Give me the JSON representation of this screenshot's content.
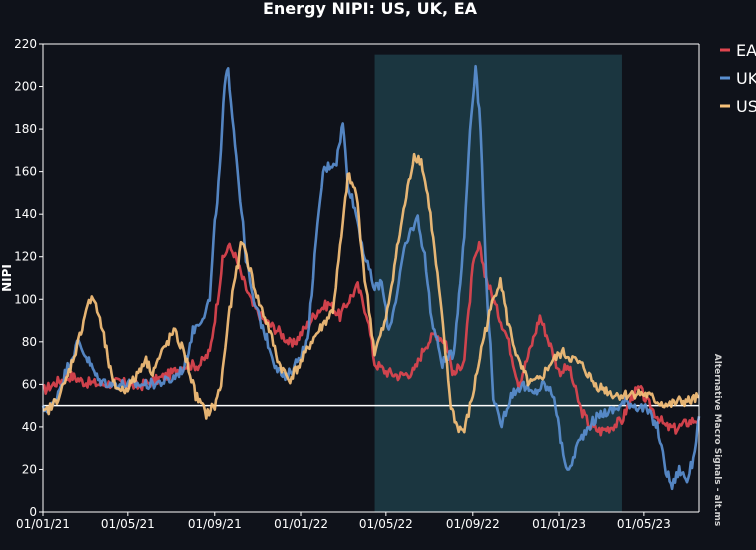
{
  "chart_data": {
    "type": "line",
    "title": "Energy NIPI: US, UK, EA",
    "ylabel": "NIPI",
    "xlabel": "",
    "ylim": [
      0,
      220
    ],
    "xlim": [
      "2021-01-01",
      "2023-07-18"
    ],
    "yticks": [
      0,
      20,
      40,
      60,
      80,
      100,
      120,
      140,
      160,
      180,
      200,
      220
    ],
    "xticks": [
      {
        "date": "2021-01-01",
        "label": "01/01/21"
      },
      {
        "date": "2021-05-01",
        "label": "01/05/21"
      },
      {
        "date": "2021-09-01",
        "label": "01/09/21"
      },
      {
        "date": "2022-01-01",
        "label": "01/01/22"
      },
      {
        "date": "2022-05-01",
        "label": "01/05/22"
      },
      {
        "date": "2022-09-01",
        "label": "01/09/22"
      },
      {
        "date": "2023-01-01",
        "label": "01/01/23"
      },
      {
        "date": "2023-05-01",
        "label": "01/05/23"
      }
    ],
    "reference_line": {
      "y": 50,
      "color": "#ffffff"
    },
    "shaded_region": {
      "x_start": "2022-04-15",
      "x_end": "2023-03-31",
      "ylim": [
        0,
        215
      ],
      "color": "#1b3640"
    },
    "legend_position": "top-right",
    "watermark": "Alternative Macro Signals - alt.ms",
    "series": [
      {
        "name": "EA",
        "color": "#e0454f",
        "points": [
          [
            "2021-01-01",
            57
          ],
          [
            "2021-01-20",
            61
          ],
          [
            "2021-02-10",
            64
          ],
          [
            "2021-03-01",
            61
          ],
          [
            "2021-03-25",
            60
          ],
          [
            "2021-04-20",
            61
          ],
          [
            "2021-05-15",
            59
          ],
          [
            "2021-06-10",
            62
          ],
          [
            "2021-07-01",
            65
          ],
          [
            "2021-07-20",
            69
          ],
          [
            "2021-08-10",
            69
          ],
          [
            "2021-08-25",
            75
          ],
          [
            "2021-09-05",
            100
          ],
          [
            "2021-09-12",
            118
          ],
          [
            "2021-09-20",
            125
          ],
          [
            "2021-09-28",
            122
          ],
          [
            "2021-10-10",
            110
          ],
          [
            "2021-10-25",
            97
          ],
          [
            "2021-11-10",
            90
          ],
          [
            "2021-12-01",
            85
          ],
          [
            "2021-12-20",
            78
          ],
          [
            "2022-01-10",
            88
          ],
          [
            "2022-01-25",
            95
          ],
          [
            "2022-02-10",
            98
          ],
          [
            "2022-02-25",
            92
          ],
          [
            "2022-03-10",
            100
          ],
          [
            "2022-03-22",
            106
          ],
          [
            "2022-04-05",
            92
          ],
          [
            "2022-04-15",
            70
          ],
          [
            "2022-05-01",
            66
          ],
          [
            "2022-05-20",
            64
          ],
          [
            "2022-06-10",
            66
          ],
          [
            "2022-06-25",
            78
          ],
          [
            "2022-07-10",
            84
          ],
          [
            "2022-07-25",
            80
          ],
          [
            "2022-08-05",
            64
          ],
          [
            "2022-08-20",
            72
          ],
          [
            "2022-09-01",
            115
          ],
          [
            "2022-09-10",
            125
          ],
          [
            "2022-09-20",
            110
          ],
          [
            "2022-10-05",
            95
          ],
          [
            "2022-10-20",
            82
          ],
          [
            "2022-11-05",
            60
          ],
          [
            "2022-11-20",
            75
          ],
          [
            "2022-12-05",
            92
          ],
          [
            "2022-12-20",
            78
          ],
          [
            "2023-01-01",
            66
          ],
          [
            "2023-01-15",
            68
          ],
          [
            "2023-02-01",
            48
          ],
          [
            "2023-02-15",
            40
          ],
          [
            "2023-03-01",
            38
          ],
          [
            "2023-03-15",
            40
          ],
          [
            "2023-03-31",
            43
          ],
          [
            "2023-04-15",
            55
          ],
          [
            "2023-04-25",
            58
          ],
          [
            "2023-05-05",
            52
          ],
          [
            "2023-05-20",
            45
          ],
          [
            "2023-06-01",
            40
          ],
          [
            "2023-06-15",
            39
          ],
          [
            "2023-07-01",
            42
          ],
          [
            "2023-07-18",
            44
          ]
        ]
      },
      {
        "name": "UK",
        "color": "#5a8fd0",
        "points": [
          [
            "2021-01-01",
            48
          ],
          [
            "2021-01-15",
            50
          ],
          [
            "2021-02-01",
            65
          ],
          [
            "2021-02-20",
            80
          ],
          [
            "2021-03-05",
            72
          ],
          [
            "2021-03-20",
            62
          ],
          [
            "2021-04-10",
            60
          ],
          [
            "2021-05-01",
            60
          ],
          [
            "2021-06-01",
            60
          ],
          [
            "2021-07-01",
            62
          ],
          [
            "2021-07-20",
            68
          ],
          [
            "2021-08-01",
            85
          ],
          [
            "2021-08-15",
            92
          ],
          [
            "2021-08-25",
            100
          ],
          [
            "2021-09-01",
            135
          ],
          [
            "2021-09-08",
            160
          ],
          [
            "2021-09-15",
            200
          ],
          [
            "2021-09-20",
            208
          ],
          [
            "2021-09-28",
            180
          ],
          [
            "2021-10-05",
            155
          ],
          [
            "2021-10-15",
            120
          ],
          [
            "2021-10-25",
            100
          ],
          [
            "2021-11-10",
            85
          ],
          [
            "2021-11-25",
            70
          ],
          [
            "2021-12-10",
            62
          ],
          [
            "2021-12-25",
            70
          ],
          [
            "2022-01-10",
            80
          ],
          [
            "2022-01-20",
            120
          ],
          [
            "2022-02-01",
            160
          ],
          [
            "2022-02-10",
            163
          ],
          [
            "2022-02-20",
            165
          ],
          [
            "2022-03-01",
            183
          ],
          [
            "2022-03-08",
            155
          ],
          [
            "2022-03-20",
            140
          ],
          [
            "2022-04-01",
            120
          ],
          [
            "2022-04-15",
            105
          ],
          [
            "2022-04-25",
            108
          ],
          [
            "2022-05-05",
            85
          ],
          [
            "2022-05-15",
            100
          ],
          [
            "2022-05-25",
            120
          ],
          [
            "2022-06-05",
            132
          ],
          [
            "2022-06-15",
            138
          ],
          [
            "2022-06-25",
            120
          ],
          [
            "2022-07-05",
            90
          ],
          [
            "2022-07-20",
            70
          ],
          [
            "2022-08-05",
            75
          ],
          [
            "2022-08-20",
            130
          ],
          [
            "2022-08-28",
            180
          ],
          [
            "2022-09-05",
            210
          ],
          [
            "2022-09-12",
            180
          ],
          [
            "2022-09-20",
            110
          ],
          [
            "2022-09-30",
            55
          ],
          [
            "2022-10-10",
            40
          ],
          [
            "2022-10-25",
            55
          ],
          [
            "2022-11-10",
            60
          ],
          [
            "2022-11-25",
            55
          ],
          [
            "2022-12-10",
            60
          ],
          [
            "2022-12-25",
            55
          ],
          [
            "2023-01-05",
            30
          ],
          [
            "2023-01-15",
            18
          ],
          [
            "2023-01-25",
            30
          ],
          [
            "2023-02-10",
            40
          ],
          [
            "2023-03-01",
            46
          ],
          [
            "2023-03-20",
            48
          ],
          [
            "2023-04-05",
            52
          ],
          [
            "2023-04-20",
            50
          ],
          [
            "2023-05-05",
            48
          ],
          [
            "2023-05-20",
            40
          ],
          [
            "2023-06-01",
            20
          ],
          [
            "2023-06-10",
            12
          ],
          [
            "2023-06-20",
            20
          ],
          [
            "2023-07-01",
            15
          ],
          [
            "2023-07-10",
            25
          ],
          [
            "2023-07-18",
            45
          ]
        ]
      },
      {
        "name": "US",
        "color": "#f7c17a",
        "points": [
          [
            "2021-01-01",
            46
          ],
          [
            "2021-01-15",
            50
          ],
          [
            "2021-02-01",
            60
          ],
          [
            "2021-02-20",
            80
          ],
          [
            "2021-03-05",
            98
          ],
          [
            "2021-03-15",
            100
          ],
          [
            "2021-03-28",
            82
          ],
          [
            "2021-04-10",
            60
          ],
          [
            "2021-04-25",
            57
          ],
          [
            "2021-05-10",
            62
          ],
          [
            "2021-05-25",
            72
          ],
          [
            "2021-06-05",
            66
          ],
          [
            "2021-06-20",
            76
          ],
          [
            "2021-07-05",
            85
          ],
          [
            "2021-07-20",
            75
          ],
          [
            "2021-08-05",
            55
          ],
          [
            "2021-08-20",
            46
          ],
          [
            "2021-09-01",
            50
          ],
          [
            "2021-09-10",
            60
          ],
          [
            "2021-09-20",
            90
          ],
          [
            "2021-09-30",
            110
          ],
          [
            "2021-10-10",
            128
          ],
          [
            "2021-10-20",
            115
          ],
          [
            "2021-11-01",
            100
          ],
          [
            "2021-11-15",
            88
          ],
          [
            "2021-12-01",
            70
          ],
          [
            "2021-12-15",
            62
          ],
          [
            "2022-01-01",
            70
          ],
          [
            "2022-01-15",
            80
          ],
          [
            "2022-02-01",
            88
          ],
          [
            "2022-02-15",
            95
          ],
          [
            "2022-03-01",
            135
          ],
          [
            "2022-03-08",
            158
          ],
          [
            "2022-03-20",
            150
          ],
          [
            "2022-04-01",
            110
          ],
          [
            "2022-04-15",
            75
          ],
          [
            "2022-05-01",
            90
          ],
          [
            "2022-05-15",
            120
          ],
          [
            "2022-05-28",
            145
          ],
          [
            "2022-06-10",
            168
          ],
          [
            "2022-06-20",
            165
          ],
          [
            "2022-07-01",
            145
          ],
          [
            "2022-07-15",
            105
          ],
          [
            "2022-08-01",
            50
          ],
          [
            "2022-08-10",
            40
          ],
          [
            "2022-08-20",
            38
          ],
          [
            "2022-09-01",
            55
          ],
          [
            "2022-09-15",
            80
          ],
          [
            "2022-09-30",
            100
          ],
          [
            "2022-10-10",
            110
          ],
          [
            "2022-10-20",
            90
          ],
          [
            "2022-11-05",
            70
          ],
          [
            "2022-11-20",
            60
          ],
          [
            "2022-12-05",
            62
          ],
          [
            "2022-12-20",
            70
          ],
          [
            "2023-01-05",
            75
          ],
          [
            "2023-01-20",
            72
          ],
          [
            "2023-02-05",
            68
          ],
          [
            "2023-02-20",
            60
          ],
          [
            "2023-03-05",
            58
          ],
          [
            "2023-03-20",
            55
          ],
          [
            "2023-04-05",
            55
          ],
          [
            "2023-04-20",
            56
          ],
          [
            "2023-05-05",
            55
          ],
          [
            "2023-05-20",
            52
          ],
          [
            "2023-06-05",
            50
          ],
          [
            "2023-06-20",
            52
          ],
          [
            "2023-07-05",
            52
          ],
          [
            "2023-07-18",
            54
          ]
        ]
      }
    ]
  }
}
